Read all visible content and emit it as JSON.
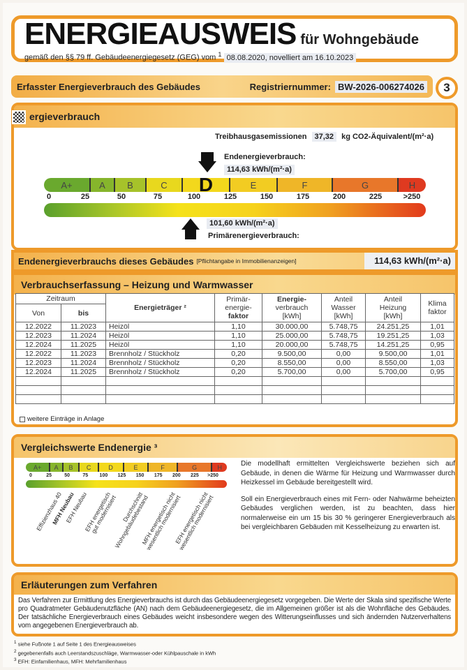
{
  "header": {
    "title": "ENERGIEAUSWEIS",
    "title_suffix": "für Wohngebäude",
    "subtitle": "gemäß den §§ 79 ff. Gebäudeenergiegesetz (GEG) vom",
    "subtitle_sup": "1",
    "subtitle_date": "08.08.2020, novelliert am 16.10.2023"
  },
  "section_bar": {
    "title": "Erfasster Energieverbrauch des Gebäudes",
    "reg_label": "Registriernummer:",
    "reg_number": "BW-2026-006274026",
    "page_number": "3"
  },
  "energy": {
    "title": "ergieverbrauch",
    "ghg_label": "Treibhausgasemissionen",
    "ghg_value": "37,32",
    "ghg_unit": "kg CO2-Äquivalent/(m²·a)",
    "end_label": "Endenergieverbrauch:",
    "end_value": "114,63 kWh/(m²·a)",
    "primary_value": "101,60 kWh/(m²·a)",
    "primary_label": "Primärenergieverbrauch:",
    "classes": [
      "A+",
      "A",
      "B",
      "C",
      "D",
      "E",
      "F",
      "G",
      "H"
    ],
    "current_class": "D",
    "ticks": [
      "0",
      "25",
      "50",
      "75",
      "100",
      "125",
      "150",
      "175",
      "200",
      "225",
      ">250"
    ],
    "end_numeric": 114.63,
    "primary_numeric": 101.6
  },
  "summary": {
    "label": "Endenergieverbrauchs dieses Gebäudes",
    "note": "[Pflichtangabe in Immobilienanzeigen]",
    "value": "114,63 kWh/(m²·a)"
  },
  "consumption": {
    "title": "Verbrauchserfassung – Heizung und Warmwasser",
    "headers": {
      "period": "Zeitraum",
      "from": "Von",
      "to": "bis",
      "carrier": "Energieträger ²",
      "pef": [
        "Primär-",
        "energie-",
        "faktor"
      ],
      "energy": [
        "Energie-",
        "verbrauch",
        "[kWh]"
      ],
      "water": [
        "Anteil",
        "Wasser",
        "[kWh]"
      ],
      "heating": [
        "Anteil",
        "Heizung",
        "[kWh]"
      ],
      "climate": [
        "Klima",
        "faktor"
      ]
    },
    "rows": [
      [
        "12.2022",
        "11.2023",
        "Heizöl",
        "1,10",
        "30.000,00",
        "5.748,75",
        "24.251,25",
        "1,01"
      ],
      [
        "12.2023",
        "11.2024",
        "Heizöl",
        "1,10",
        "25.000,00",
        "5.748,75",
        "19.251,25",
        "1,03"
      ],
      [
        "12.2024",
        "11.2025",
        "Heizöl",
        "1,10",
        "20.000,00",
        "5.748,75",
        "14.251,25",
        "0,95"
      ],
      [
        "12.2022",
        "11.2023",
        "Brennholz / Stückholz",
        "0,20",
        "9.500,00",
        "0,00",
        "9.500,00",
        "1,01"
      ],
      [
        "12.2023",
        "11.2024",
        "Brennholz / Stückholz",
        "0,20",
        "8.550,00",
        "0,00",
        "8.550,00",
        "1,03"
      ],
      [
        "12.2024",
        "11.2025",
        "Brennholz / Stückholz",
        "0,20",
        "5.700,00",
        "0,00",
        "5.700,00",
        "0,95"
      ]
    ],
    "more_entries": "weitere Einträge in Anlage"
  },
  "comparison": {
    "title": "Vergleichswerte Endenergie ³",
    "labels": [
      [
        "Effizienzhaus 40"
      ],
      [
        "MFH Neubau"
      ],
      [
        "EFH Neubau"
      ],
      [
        "EFH energetisch",
        "gut modernisiert"
      ],
      [
        "Durchschnitt",
        "Wohngebäudebestand"
      ],
      [
        "MFH energetisch nicht",
        "wesentlich modernisiert"
      ],
      [
        "EFH energetisch nicht",
        "wesentlich modernisiert"
      ]
    ],
    "text1": "Die modellhaft ermittelten Vergleichswerte beziehen sich auf Gebäude, in denen die Wärme für Heizung und Warmwasser durch Heizkessel im Gebäude bereitgestellt wird.",
    "text2": "Soll ein Energieverbrauch eines mit Fern- oder Nahwärme beheizten Gebäudes verglichen werden, ist zu beachten, dass hier normalerweise ein um 15 bis 30 % geringerer Energieverbrauch als bei vergleichbaren Gebäuden mit Kesselheizung zu erwarten ist."
  },
  "explanation": {
    "title": "Erläuterungen zum Verfahren",
    "text": "Das Verfahren zur Ermittlung des Energieverbrauchs ist durch das Gebäudeenergiegesetz vorgegeben. Die Werte der Skala sind spezifische Werte pro Quadratmeter Gebäudenutzfläche (AN) nach dem Gebäudeenergiegesetz, die im Allgemeinen größer ist als die Wohnfläche des Gebäudes. Der tatsächliche Energieverbrauch eines Gebäudes weicht insbesondere wegen des Witterungseinflusses und sich ändernden Nutzerverhaltens vom angegebenen Energieverbrauch ab."
  },
  "footnotes": [
    "siehe Fußnote 1 auf Seite 1 des Energieausweises",
    "gegebenenfalls auch Leerstandszuschläge, Warmwasser-oder Kühlpauschale in kWh",
    "EFH: Einfamilienhaus, MFH: Mehrfamilienhaus"
  ],
  "colors": {
    "accent": "#ee9a2a",
    "header_gradient": "#f4b24c",
    "scale_green": "#5aa02c",
    "scale_yellow": "#f5e21a",
    "scale_red": "#e23a1c"
  }
}
